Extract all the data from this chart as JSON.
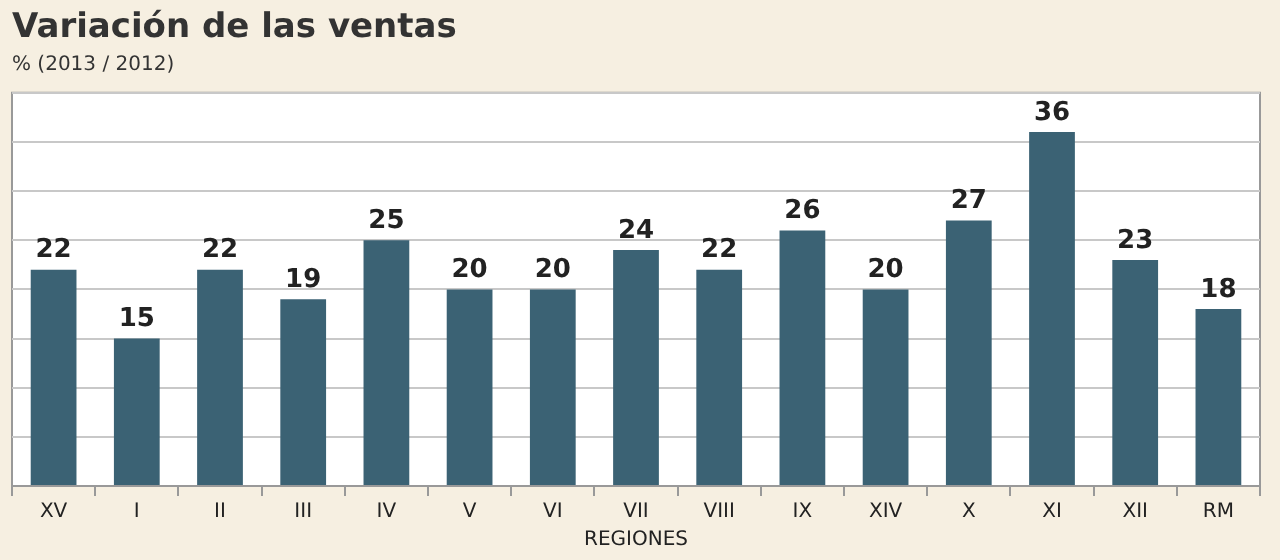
{
  "chart_data": {
    "type": "bar",
    "title": "Variación de las ventas",
    "subtitle": "% (2013 / 2012)",
    "xlabel": "REGIONES",
    "categories": [
      "XV",
      "I",
      "II",
      "III",
      "IV",
      "V",
      "VI",
      "VII",
      "VIII",
      "IX",
      "XIV",
      "X",
      "XI",
      "XII",
      "RM"
    ],
    "values": [
      22,
      15,
      22,
      19,
      25,
      20,
      20,
      24,
      22,
      26,
      20,
      27,
      36,
      23,
      18
    ],
    "color": "#3b6274",
    "data_labels": true,
    "grid": "y",
    "tick_labels": "x",
    "ylim": [
      0,
      40
    ],
    "yticks": [
      {
        "value": 0,
        "label": null
      },
      {
        "value": 5,
        "label": null
      },
      {
        "value": 10,
        "label": null
      },
      {
        "value": 15,
        "label": null
      },
      {
        "value": 20,
        "label": null
      },
      {
        "value": 25,
        "label": null
      },
      {
        "value": 30,
        "label": null
      },
      {
        "value": 35,
        "label": null
      },
      {
        "value": 40,
        "label": null
      }
    ]
  }
}
